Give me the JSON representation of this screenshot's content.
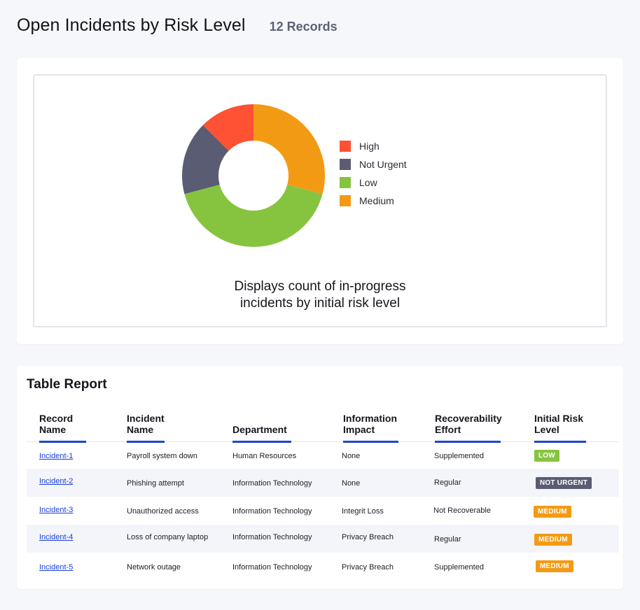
{
  "header": {
    "title": "Open Incidents by Risk Level",
    "record_count": "12 Records"
  },
  "colors": {
    "high": "#ff5133",
    "not_urgent": "#5a5c73",
    "low": "#86c440",
    "medium": "#f39a14",
    "link": "#1a3fd6",
    "accent_underline": "#1f44cf"
  },
  "chart_data": {
    "type": "pie",
    "title": "",
    "categories": [
      "High",
      "Not Urgent",
      "Low",
      "Medium"
    ],
    "values": [
      1.5,
      2,
      5,
      3.5
    ],
    "colors": [
      "#ff5133",
      "#5a5c73",
      "#86c440",
      "#f39a14"
    ],
    "legend_position": "right",
    "donut": true,
    "caption": "Displays count of in-progress incidents by initial risk level"
  },
  "chart": {
    "caption_line1": "Displays count of in-progress",
    "caption_line2": "incidents by initial risk level"
  },
  "table": {
    "title": "Table Report",
    "headers": [
      {
        "line1": "Record",
        "line2": "Name"
      },
      {
        "line1": "Incident",
        "line2": "Name"
      },
      {
        "line1": "",
        "line2": "Department"
      },
      {
        "line1": "Information",
        "line2": "Impact"
      },
      {
        "line1": "Recoverability",
        "line2": "Effort"
      },
      {
        "line1": "Initial Risk",
        "line2": "Level"
      }
    ],
    "rows": [
      {
        "record": "Incident-1",
        "incident": "Payroll system down",
        "department": "Human Resources",
        "impact": "None",
        "effort": "Supplemented",
        "risk": "LOW",
        "risk_color": "#86c440"
      },
      {
        "record": "Incident-2",
        "incident": "Phishing attempt",
        "department": "Information Technology",
        "impact": "None",
        "effort": "Regular",
        "risk": "NOT URGENT",
        "risk_color": "#5a5c73"
      },
      {
        "record": "Incident-3",
        "incident": "Unauthorized access",
        "department": "Information Technology",
        "impact": "Integrit Loss",
        "effort": "Not Recoverable",
        "risk": "MEDIUM",
        "risk_color": "#f39a14"
      },
      {
        "record": "Incident-4",
        "incident": "Loss of company laptop",
        "department": "Information Technology",
        "impact": "Privacy Breach",
        "effort": "Regular",
        "risk": "MEDIUM",
        "risk_color": "#f39a14"
      },
      {
        "record": "Incident-5",
        "incident": "Network outage",
        "department": "Information Technology",
        "impact": "Privacy Breach",
        "effort": "Supplemented",
        "risk": "MEDIUM",
        "risk_color": "#f39a14"
      }
    ]
  }
}
